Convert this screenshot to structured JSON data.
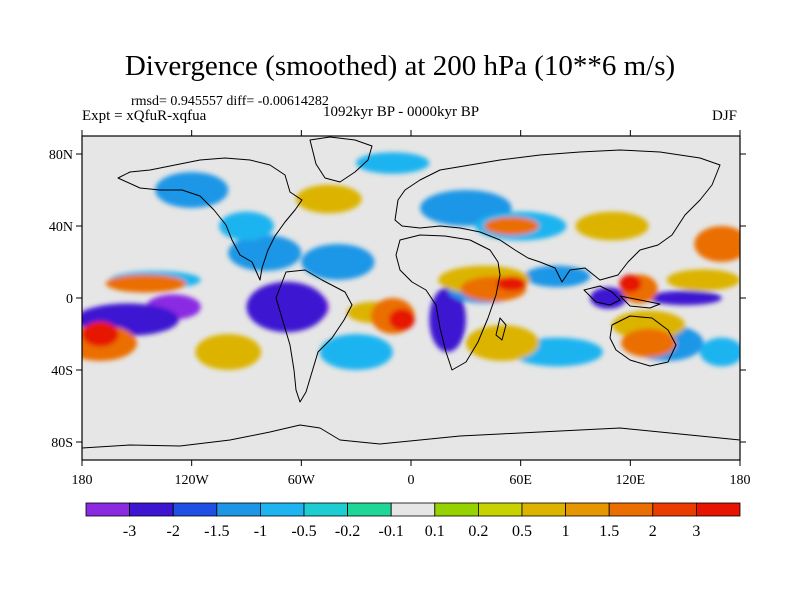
{
  "chart_data": {
    "type": "heatmap",
    "title": "Divergence (smoothed) at 200 hPa (10**6 m/s)",
    "stats_text": "rmsd= 0.945557 diff= -0.00614282",
    "experiment_text": "Expt = xQfuR-xqfua",
    "period_text": "1092kyr BP - 0000kyr BP",
    "season": "DJF",
    "x_range": [
      -180,
      180
    ],
    "y_range": [
      -90,
      90
    ],
    "x_ticks": [
      {
        "value": -180,
        "label": "180"
      },
      {
        "value": -120,
        "label": "120W"
      },
      {
        "value": -60,
        "label": "60W"
      },
      {
        "value": 0,
        "label": "0"
      },
      {
        "value": 60,
        "label": "60E"
      },
      {
        "value": 120,
        "label": "120E"
      },
      {
        "value": 180,
        "label": "180"
      }
    ],
    "y_ticks": [
      {
        "value": 80,
        "label": "80N"
      },
      {
        "value": 40,
        "label": "40N"
      },
      {
        "value": 0,
        "label": "0"
      },
      {
        "value": -40,
        "label": "40S"
      },
      {
        "value": -80,
        "label": "80S"
      }
    ],
    "colorbar": {
      "colors": [
        "#8a2be2",
        "#3c14d2",
        "#1e50e6",
        "#1e96e6",
        "#1eb4f0",
        "#1ecdd2",
        "#1ed796",
        "#e6e6e6",
        "#96d200",
        "#c8d200",
        "#dcb400",
        "#e69600",
        "#eb6e00",
        "#eb3c00",
        "#e61400"
      ],
      "labels": [
        "-3",
        "-2",
        "-1.5",
        "-1",
        "-0.5",
        "-0.2",
        "-0.1",
        "0.1",
        "0.2",
        "0.5",
        "1",
        "1.5",
        "2",
        "3"
      ]
    },
    "regions": [
      {
        "lon": -160,
        "lat": -10,
        "rx": 22,
        "ry": 6,
        "level": 0
      },
      {
        "lon": -130,
        "lat": -5,
        "rx": 15,
        "ry": 7,
        "level": 0
      },
      {
        "lon": -60,
        "lat": -5,
        "rx": 15,
        "ry": 10,
        "level": 0
      },
      {
        "lon": 18,
        "lat": -10,
        "rx": 7,
        "ry": 12,
        "level": 0
      },
      {
        "lon": 110,
        "lat": 0,
        "rx": 8,
        "ry": 4,
        "level": 0
      },
      {
        "lon": -155,
        "lat": -12,
        "rx": 28,
        "ry": 9,
        "level": 1
      },
      {
        "lon": -68,
        "lat": -5,
        "rx": 22,
        "ry": 14,
        "level": 1
      },
      {
        "lon": 20,
        "lat": -12,
        "rx": 10,
        "ry": 18,
        "level": 1
      },
      {
        "lon": 108,
        "lat": 0,
        "rx": 10,
        "ry": 6,
        "level": 1
      },
      {
        "lon": 150,
        "lat": 0,
        "rx": 20,
        "ry": 4,
        "level": 1
      },
      {
        "lon": -80,
        "lat": 25,
        "rx": 20,
        "ry": 10,
        "level": 3
      },
      {
        "lon": -40,
        "lat": 20,
        "rx": 20,
        "ry": 10,
        "level": 3
      },
      {
        "lon": 40,
        "lat": 5,
        "rx": 20,
        "ry": 8,
        "level": 3
      },
      {
        "lon": 80,
        "lat": 12,
        "rx": 18,
        "ry": 6,
        "level": 3
      },
      {
        "lon": 30,
        "lat": 50,
        "rx": 25,
        "ry": 10,
        "level": 3
      },
      {
        "lon": 140,
        "lat": -25,
        "rx": 20,
        "ry": 10,
        "level": 3
      },
      {
        "lon": -120,
        "lat": 60,
        "rx": 20,
        "ry": 10,
        "level": 3
      },
      {
        "lon": -140,
        "lat": 10,
        "rx": 25,
        "ry": 5,
        "level": 4
      },
      {
        "lon": -90,
        "lat": 40,
        "rx": 15,
        "ry": 8,
        "level": 4
      },
      {
        "lon": 60,
        "lat": 40,
        "rx": 25,
        "ry": 8,
        "level": 4
      },
      {
        "lon": -30,
        "lat": -30,
        "rx": 20,
        "ry": 10,
        "level": 4
      },
      {
        "lon": 80,
        "lat": -30,
        "rx": 25,
        "ry": 8,
        "level": 4
      },
      {
        "lon": 170,
        "lat": -30,
        "rx": 12,
        "ry": 8,
        "level": 4
      },
      {
        "lon": -10,
        "lat": 75,
        "rx": 20,
        "ry": 6,
        "level": 4
      },
      {
        "lon": 160,
        "lat": 10,
        "rx": 20,
        "ry": 6,
        "level": 10
      },
      {
        "lon": -100,
        "lat": -30,
        "rx": 18,
        "ry": 10,
        "level": 10
      },
      {
        "lon": -20,
        "lat": -8,
        "rx": 15,
        "ry": 6,
        "level": 10
      },
      {
        "lon": 40,
        "lat": 10,
        "rx": 25,
        "ry": 8,
        "level": 10
      },
      {
        "lon": 50,
        "lat": -25,
        "rx": 20,
        "ry": 10,
        "level": 10
      },
      {
        "lon": 130,
        "lat": -15,
        "rx": 20,
        "ry": 8,
        "level": 10
      },
      {
        "lon": -45,
        "lat": 55,
        "rx": 18,
        "ry": 8,
        "level": 10
      },
      {
        "lon": 110,
        "lat": 40,
        "rx": 20,
        "ry": 8,
        "level": 10
      },
      {
        "lon": -170,
        "lat": -25,
        "rx": 20,
        "ry": 10,
        "level": 12
      },
      {
        "lon": -145,
        "lat": 8,
        "rx": 22,
        "ry": 5,
        "level": 12
      },
      {
        "lon": -10,
        "lat": -10,
        "rx": 12,
        "ry": 10,
        "level": 12
      },
      {
        "lon": 45,
        "lat": 5,
        "rx": 18,
        "ry": 7,
        "level": 12
      },
      {
        "lon": 125,
        "lat": 5,
        "rx": 10,
        "ry": 8,
        "level": 12
      },
      {
        "lon": 130,
        "lat": -25,
        "rx": 15,
        "ry": 8,
        "level": 12
      },
      {
        "lon": 170,
        "lat": 30,
        "rx": 15,
        "ry": 10,
        "level": 12
      },
      {
        "lon": 55,
        "lat": 40,
        "rx": 15,
        "ry": 5,
        "level": 12
      },
      {
        "lon": -5,
        "lat": -12,
        "rx": 7,
        "ry": 6,
        "level": 14
      },
      {
        "lon": -170,
        "lat": -20,
        "rx": 10,
        "ry": 7,
        "level": 14
      },
      {
        "lon": 55,
        "lat": 8,
        "rx": 8,
        "ry": 4,
        "level": 14
      },
      {
        "lon": 120,
        "lat": 8,
        "rx": 6,
        "ry": 5,
        "level": 14
      }
    ]
  }
}
